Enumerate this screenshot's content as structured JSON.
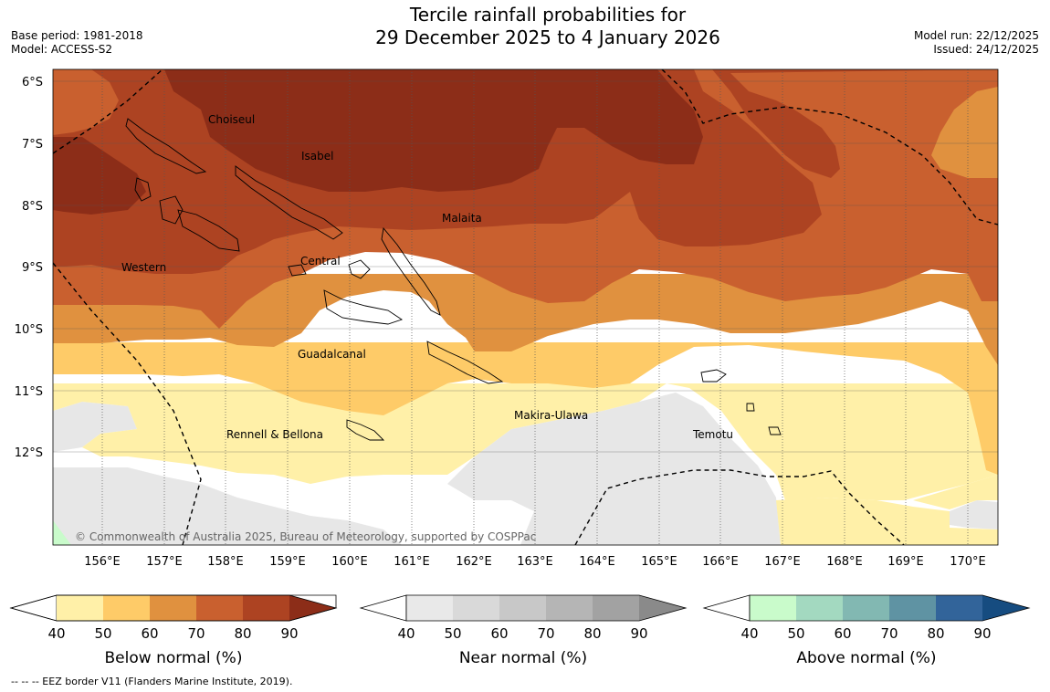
{
  "header": {
    "title_line1": "Tercile rainfall probabilities for",
    "title_line2": "29 December 2025 to 4 January 2026",
    "base_period": "Base period: 1981-2018",
    "model": "Model: ACCESS-S2",
    "model_run": "Model run: 22/12/2025",
    "issued": "Issued: 24/12/2025"
  },
  "map": {
    "lat_labels": [
      "6°S",
      "7°S",
      "8°S",
      "9°S",
      "10°S",
      "11°S",
      "12°S"
    ],
    "lon_labels": [
      "156°E",
      "157°E",
      "158°E",
      "159°E",
      "160°E",
      "161°E",
      "162°E",
      "163°E",
      "164°E",
      "165°E",
      "166°E",
      "167°E",
      "168°E",
      "169°E",
      "170°E"
    ],
    "regions": [
      {
        "name": "Choiseul"
      },
      {
        "name": "Isabel"
      },
      {
        "name": "Malaita"
      },
      {
        "name": "Central"
      },
      {
        "name": "Western"
      },
      {
        "name": "Guadalcanal"
      },
      {
        "name": "Makira-Ulawa"
      },
      {
        "name": "Rennell & Bellona"
      },
      {
        "name": "Temotu"
      }
    ],
    "copyright": "© Commonwealth of Australia 2025, Bureau of Meteorology, supported by COSPPac"
  },
  "colorbars": [
    {
      "label": "Below normal (%)",
      "ticks": [
        "40",
        "50",
        "60",
        "70",
        "80",
        "90"
      ],
      "colors": [
        "#fff0a8",
        "#fecb68",
        "#e0913f",
        "#c9602f",
        "#ad4322",
        "#8c2d18"
      ]
    },
    {
      "label": "Near normal (%)",
      "ticks": [
        "40",
        "50",
        "60",
        "70",
        "80",
        "90"
      ],
      "colors": [
        "#e9e9e9",
        "#d9d9d9",
        "#c8c8c8",
        "#b5b5b5",
        "#a2a2a2",
        "#8a8a8a"
      ]
    },
    {
      "label": "Above normal (%)",
      "ticks": [
        "40",
        "50",
        "60",
        "70",
        "80",
        "90"
      ],
      "colors": [
        "#c9fbcb",
        "#a3d9c0",
        "#82b8b2",
        "#5f93a3",
        "#32649a",
        "#164c80"
      ]
    }
  ],
  "footer": {
    "legend_note": "--  --  -- EEZ border V11 (Flanders Marine Institute, 2019)."
  }
}
